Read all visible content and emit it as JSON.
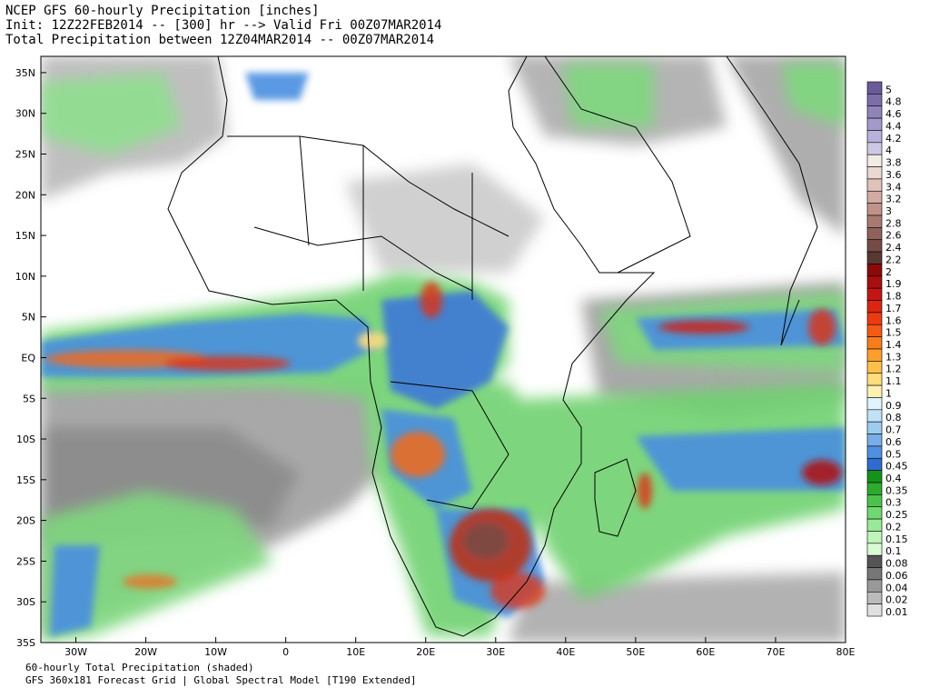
{
  "header": {
    "line1": "NCEP GFS 60-hourly Precipitation [inches]",
    "line2": "Init: 12Z22FEB2014 -- [300] hr --> Valid Fri 00Z07MAR2014",
    "line3": "Total Precipitation between 12Z04MAR2014 -- 00Z07MAR2014"
  },
  "footer": {
    "line1": "60-hourly Total Precipitation (shaded)",
    "line2": "GFS 360x181 Forecast Grid | Global Spectral Model [T190 Extended]"
  },
  "map": {
    "lon_range": [
      -35,
      80
    ],
    "lat_range": [
      -35,
      37
    ],
    "lon_ticks": [
      "30W",
      "20W",
      "10W",
      "0",
      "10E",
      "20E",
      "30E",
      "40E",
      "50E",
      "60E",
      "70E",
      "80E"
    ],
    "lat_ticks": [
      "35N",
      "30N",
      "25N",
      "20N",
      "15N",
      "10N",
      "5N",
      "EQ",
      "5S",
      "10S",
      "15S",
      "20S",
      "25S",
      "30S",
      "35S"
    ]
  },
  "colorbar": {
    "levels": [
      "5",
      "4.8",
      "4.6",
      "4.4",
      "4.2",
      "4",
      "3.8",
      "3.6",
      "3.4",
      "3.2",
      "3",
      "2.8",
      "2.6",
      "2.4",
      "2.2",
      "2",
      "1.9",
      "1.8",
      "1.7",
      "1.6",
      "1.5",
      "1.4",
      "1.3",
      "1.2",
      "1.1",
      "1",
      "0.9",
      "0.8",
      "0.7",
      "0.6",
      "0.5",
      "0.45",
      "0.4",
      "0.35",
      "0.3",
      "0.25",
      "0.2",
      "0.15",
      "0.1",
      "0.08",
      "0.06",
      "0.04",
      "0.02",
      "0.01"
    ],
    "colors": [
      "#6a5a9a",
      "#7d6eab",
      "#9084bb",
      "#a39aca",
      "#b9b2d8",
      "#cdc8e4",
      "#f2ebe6",
      "#ead8d2",
      "#dfc2ba",
      "#d2aca2",
      "#c09288",
      "#a87a70",
      "#8e625a",
      "#744c45",
      "#5a3832",
      "#8a0a0a",
      "#a80f0f",
      "#c41515",
      "#dc2410",
      "#ec3a10",
      "#f45a14",
      "#f87d1a",
      "#fc9f2a",
      "#fec04a",
      "#fedd7a",
      "#fff2b0",
      "#e0f4fb",
      "#bfe2f7",
      "#9ecbf0",
      "#78aeea",
      "#5090e0",
      "#2f6cd0",
      "#139418",
      "#2cab2c",
      "#4cc24c",
      "#70d870",
      "#98ea98",
      "#bff5b8",
      "#d9fbd3",
      "#555555",
      "#777777",
      "#999999",
      "#bbbbbb",
      "#e0e0e0"
    ]
  }
}
